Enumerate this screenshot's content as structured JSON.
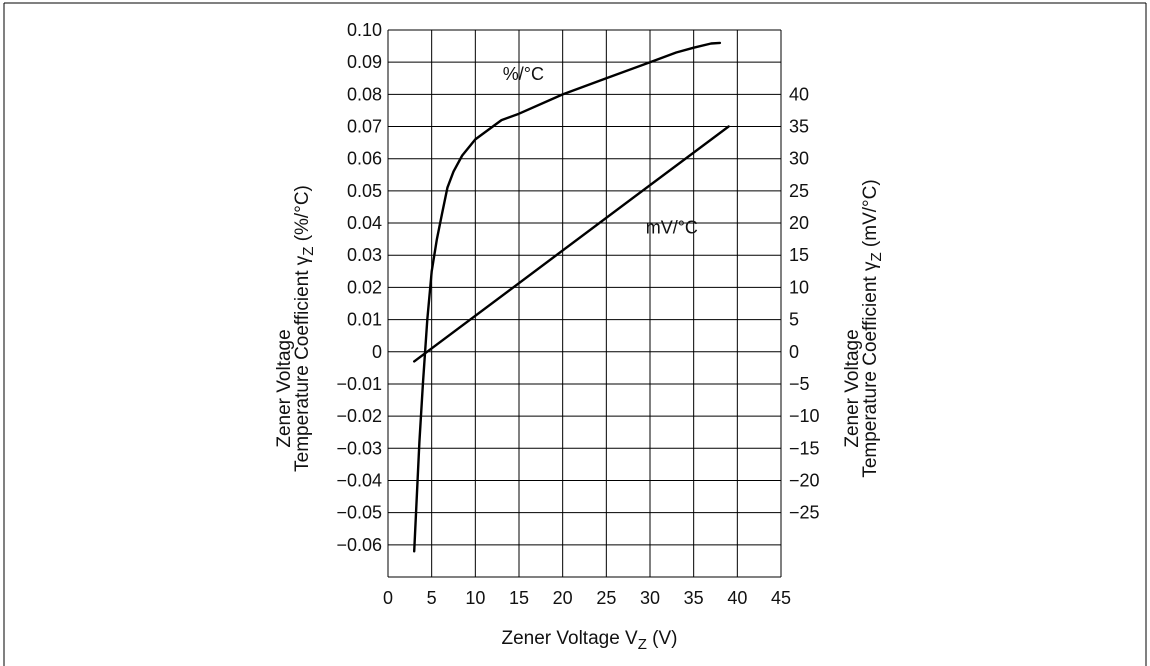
{
  "chart_data": {
    "type": "line",
    "xlabel": "Zener Voltage V",
    "xlabel_sub": "Z",
    "xlabel_unit": "(V)",
    "x_ticks": [
      0,
      5,
      10,
      15,
      20,
      25,
      30,
      35,
      40,
      45
    ],
    "xlim": [
      0,
      45
    ],
    "ylabel_left": {
      "line1": "Zener Voltage",
      "line2": "Temperature Coefficient",
      "symbol": "γ",
      "symbol_sub": "Z",
      "unit": "(%/°C)"
    },
    "ylabel_right": {
      "line1": "Zener Voltage",
      "line2": "Temperature Coefficient",
      "symbol": "γ",
      "symbol_sub": "Z",
      "unit": "(mV/°C)"
    },
    "y_left_ticks": [
      "−0.06",
      "−0.05",
      "−0.04",
      "−0.03",
      "−0.02",
      "−0.01",
      "0",
      "0.01",
      "0.02",
      "0.03",
      "0.04",
      "0.05",
      "0.06",
      "0.07",
      "0.08",
      "0.09",
      "0.10"
    ],
    "y_left_values": [
      -0.06,
      -0.05,
      -0.04,
      -0.03,
      -0.02,
      -0.01,
      0,
      0.01,
      0.02,
      0.03,
      0.04,
      0.05,
      0.06,
      0.07,
      0.08,
      0.09,
      0.1
    ],
    "ylim_left": [
      -0.07,
      0.1
    ],
    "y_right_ticks": [
      "−25",
      "−20",
      "−15",
      "−10",
      "−5",
      "0",
      "5",
      "10",
      "15",
      "20",
      "25",
      "30",
      "35",
      "40"
    ],
    "y_right_values": [
      -25,
      -20,
      -15,
      -10,
      -5,
      0,
      5,
      10,
      15,
      20,
      25,
      30,
      35,
      40
    ],
    "ylim_right": [
      -35,
      50
    ],
    "grid": true,
    "series": [
      {
        "name": "%/°C",
        "axis": "left",
        "x": [
          3.0,
          3.3,
          3.6,
          4.0,
          4.5,
          5.0,
          5.6,
          6.2,
          6.8,
          7.5,
          8.5,
          10.0,
          12.0,
          13.0,
          15.0,
          20.0,
          25.0,
          30.0,
          33.0,
          35.0,
          37.0,
          38.0
        ],
        "y": [
          -0.062,
          -0.045,
          -0.028,
          -0.01,
          0.01,
          0.025,
          0.035,
          0.043,
          0.051,
          0.056,
          0.061,
          0.066,
          0.07,
          0.072,
          0.074,
          0.08,
          0.085,
          0.09,
          0.093,
          0.0945,
          0.0958,
          0.096
        ]
      },
      {
        "name": "mV/°C",
        "axis": "right",
        "x": [
          3.0,
          39.0
        ],
        "y": [
          -1.5,
          35.0
        ]
      }
    ]
  }
}
